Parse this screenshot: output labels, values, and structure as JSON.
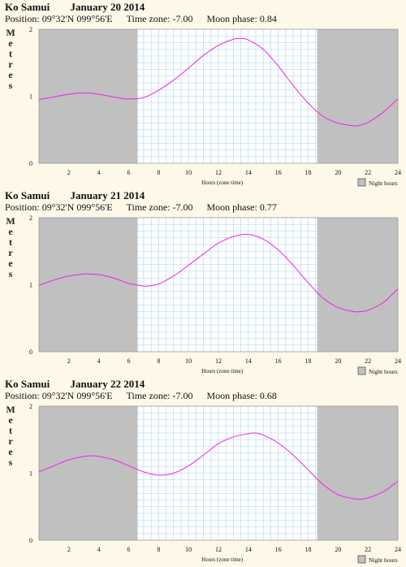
{
  "panels": [
    {
      "location": "Ko Samui",
      "date": "January 20 2014",
      "position_label": "Position:",
      "position": "09°32'N 099°56'E",
      "timezone_label": "Time zone:",
      "timezone": "-7.00",
      "moon_label": "Moon phase:",
      "moon_phase": "0.84"
    },
    {
      "location": "Ko Samui",
      "date": "January 21 2014",
      "position_label": "Position:",
      "position": "09°32'N 099°56'E",
      "timezone_label": "Time zone:",
      "timezone": "-7.00",
      "moon_label": "Moon phase:",
      "moon_phase": "0.77"
    },
    {
      "location": "Ko Samui",
      "date": "January 22 2014",
      "position_label": "Position:",
      "position": "09°32'N 099°56'E",
      "timezone_label": "Time zone:",
      "timezone": "-7.00",
      "moon_label": "Moon phase:",
      "moon_phase": "0.68"
    }
  ],
  "colors": {
    "background": "#fdf8e8",
    "plot_day": "#ffffff",
    "plot_night": "#c0c0c0",
    "grid": "#a9d4ee",
    "curve": "#ee22ee"
  },
  "chart_data": [
    {
      "type": "line",
      "ylabel": "Metres",
      "xlabel": "Hours (zone time)",
      "legend": "Night hours",
      "xlim": [
        0,
        24
      ],
      "ylim": [
        0,
        2
      ],
      "xticks": [
        2,
        4,
        6,
        8,
        10,
        12,
        14,
        16,
        18,
        20,
        22,
        24
      ],
      "yticks": [
        0,
        1,
        2
      ],
      "night": [
        [
          0,
          6.6
        ],
        [
          18.6,
          24
        ]
      ],
      "x": [
        0,
        1,
        2,
        3,
        4,
        5,
        6,
        7,
        8,
        9,
        10,
        11,
        12,
        13,
        13.5,
        14,
        15,
        16,
        17,
        18,
        19,
        20,
        21,
        21.3,
        22,
        23,
        24
      ],
      "y": [
        0.95,
        0.99,
        1.03,
        1.05,
        1.03,
        0.99,
        0.96,
        0.98,
        1.09,
        1.24,
        1.42,
        1.61,
        1.76,
        1.85,
        1.86,
        1.84,
        1.7,
        1.45,
        1.16,
        0.9,
        0.7,
        0.6,
        0.56,
        0.56,
        0.61,
        0.76,
        0.96
      ]
    },
    {
      "type": "line",
      "ylabel": "Metres",
      "xlabel": "Hours (zone time)",
      "legend": "Night hours",
      "xlim": [
        0,
        24
      ],
      "ylim": [
        0,
        2
      ],
      "xticks": [
        2,
        4,
        6,
        8,
        10,
        12,
        14,
        16,
        18,
        20,
        22,
        24
      ],
      "yticks": [
        0,
        1,
        2
      ],
      "night": [
        [
          0,
          6.6
        ],
        [
          18.6,
          24
        ]
      ],
      "x": [
        0,
        1,
        2,
        3,
        3.3,
        4,
        5,
        6,
        7,
        7.3,
        8,
        9,
        10,
        11,
        12,
        13,
        14,
        15,
        16,
        17,
        18,
        19,
        20,
        21,
        21.5,
        22,
        23,
        24
      ],
      "y": [
        0.99,
        1.07,
        1.13,
        1.16,
        1.16,
        1.15,
        1.1,
        1.02,
        0.98,
        0.98,
        1.01,
        1.13,
        1.29,
        1.46,
        1.62,
        1.72,
        1.75,
        1.68,
        1.52,
        1.29,
        1.03,
        0.8,
        0.66,
        0.6,
        0.6,
        0.62,
        0.73,
        0.94
      ]
    },
    {
      "type": "line",
      "ylabel": "Metres",
      "xlabel": "Hours (zone time)",
      "legend": "Night hours",
      "xlim": [
        0,
        24
      ],
      "ylim": [
        0,
        2
      ],
      "xticks": [
        2,
        4,
        6,
        8,
        10,
        12,
        14,
        16,
        18,
        20,
        22,
        24
      ],
      "yticks": [
        0,
        1,
        2
      ],
      "night": [
        [
          0,
          6.6
        ],
        [
          18.6,
          24
        ]
      ],
      "x": [
        0,
        1,
        2,
        3,
        3.5,
        4,
        5,
        6,
        7,
        8,
        9,
        10,
        11,
        12,
        13,
        14,
        14.4,
        15,
        16,
        17,
        18,
        19,
        20,
        21,
        21.5,
        22,
        23,
        24
      ],
      "y": [
        1.02,
        1.11,
        1.2,
        1.25,
        1.26,
        1.25,
        1.2,
        1.11,
        1.02,
        0.97,
        1.0,
        1.11,
        1.27,
        1.44,
        1.54,
        1.59,
        1.6,
        1.57,
        1.45,
        1.27,
        1.05,
        0.83,
        0.68,
        0.62,
        0.61,
        0.63,
        0.72,
        0.88
      ]
    }
  ]
}
